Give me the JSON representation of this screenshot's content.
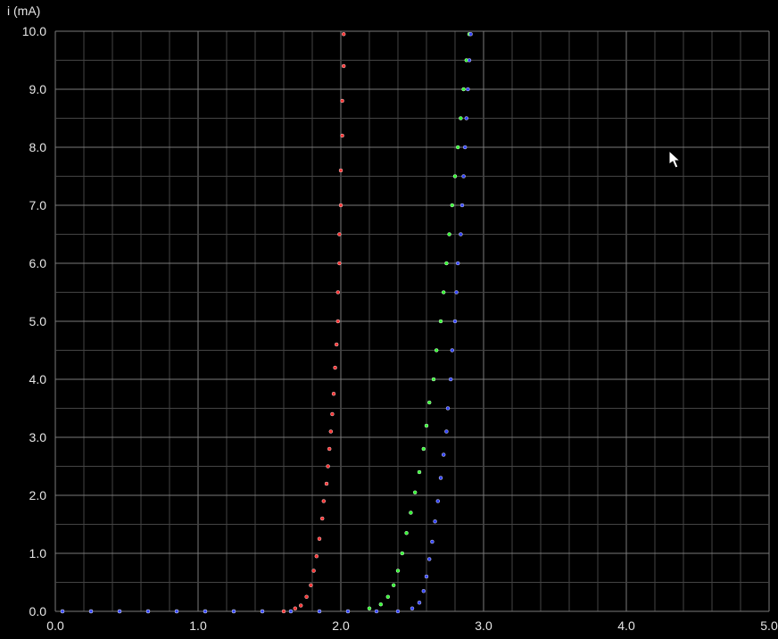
{
  "chart_data": {
    "type": "scatter",
    "title": "",
    "xlabel": "",
    "ylabel": "i (mA)",
    "xlim": [
      0,
      5
    ],
    "ylim": [
      0,
      10
    ],
    "x_ticks": [
      "0.0",
      "1.0",
      "2.0",
      "3.0",
      "4.0",
      "5.0"
    ],
    "y_ticks": [
      "0.0",
      "1.0",
      "2.0",
      "3.0",
      "4.0",
      "5.0",
      "6.0",
      "7.0",
      "8.0",
      "9.0",
      "10.0"
    ],
    "grid": true,
    "background": "#000000",
    "grid_color": "#4a4a4a",
    "series": [
      {
        "color": "#ff3333",
        "points": [
          [
            0.05,
            0
          ],
          [
            0.25,
            0
          ],
          [
            0.45,
            0
          ],
          [
            0.65,
            0
          ],
          [
            0.85,
            0
          ],
          [
            1.05,
            0
          ],
          [
            1.25,
            0
          ],
          [
            1.45,
            0
          ],
          [
            1.6,
            0
          ],
          [
            1.68,
            0.05
          ],
          [
            1.72,
            0.1
          ],
          [
            1.76,
            0.25
          ],
          [
            1.79,
            0.45
          ],
          [
            1.81,
            0.7
          ],
          [
            1.83,
            0.95
          ],
          [
            1.85,
            1.25
          ],
          [
            1.87,
            1.6
          ],
          [
            1.88,
            1.9
          ],
          [
            1.9,
            2.2
          ],
          [
            1.91,
            2.5
          ],
          [
            1.92,
            2.8
          ],
          [
            1.93,
            3.1
          ],
          [
            1.94,
            3.4
          ],
          [
            1.95,
            3.75
          ],
          [
            1.96,
            4.2
          ],
          [
            1.97,
            4.6
          ],
          [
            1.98,
            5.0
          ],
          [
            1.98,
            5.5
          ],
          [
            1.99,
            6.0
          ],
          [
            1.99,
            6.5
          ],
          [
            2.0,
            7.0
          ],
          [
            2.0,
            7.6
          ],
          [
            2.01,
            8.2
          ],
          [
            2.01,
            8.8
          ],
          [
            2.02,
            9.4
          ],
          [
            2.02,
            9.95
          ]
        ]
      },
      {
        "color": "#33ff33",
        "points": [
          [
            0.05,
            0
          ],
          [
            0.25,
            0
          ],
          [
            0.45,
            0
          ],
          [
            0.65,
            0
          ],
          [
            0.85,
            0
          ],
          [
            1.05,
            0
          ],
          [
            1.25,
            0
          ],
          [
            1.45,
            0
          ],
          [
            1.65,
            0
          ],
          [
            1.85,
            0
          ],
          [
            2.05,
            0
          ],
          [
            2.2,
            0.05
          ],
          [
            2.28,
            0.12
          ],
          [
            2.33,
            0.25
          ],
          [
            2.37,
            0.45
          ],
          [
            2.4,
            0.7
          ],
          [
            2.43,
            1.0
          ],
          [
            2.46,
            1.35
          ],
          [
            2.49,
            1.7
          ],
          [
            2.52,
            2.05
          ],
          [
            2.55,
            2.4
          ],
          [
            2.58,
            2.8
          ],
          [
            2.6,
            3.2
          ],
          [
            2.62,
            3.6
          ],
          [
            2.65,
            4.0
          ],
          [
            2.67,
            4.5
          ],
          [
            2.7,
            5.0
          ],
          [
            2.72,
            5.5
          ],
          [
            2.74,
            6.0
          ],
          [
            2.76,
            6.5
          ],
          [
            2.78,
            7.0
          ],
          [
            2.8,
            7.5
          ],
          [
            2.82,
            8.0
          ],
          [
            2.84,
            8.5
          ],
          [
            2.86,
            9.0
          ],
          [
            2.88,
            9.5
          ],
          [
            2.9,
            9.95
          ]
        ]
      },
      {
        "color": "#3344ff",
        "points": [
          [
            0.05,
            0
          ],
          [
            0.25,
            0
          ],
          [
            0.45,
            0
          ],
          [
            0.65,
            0
          ],
          [
            0.85,
            0
          ],
          [
            1.05,
            0
          ],
          [
            1.25,
            0
          ],
          [
            1.45,
            0
          ],
          [
            1.65,
            0
          ],
          [
            1.85,
            0
          ],
          [
            2.05,
            0
          ],
          [
            2.25,
            0
          ],
          [
            2.4,
            0
          ],
          [
            2.5,
            0.05
          ],
          [
            2.55,
            0.15
          ],
          [
            2.58,
            0.35
          ],
          [
            2.6,
            0.6
          ],
          [
            2.62,
            0.9
          ],
          [
            2.64,
            1.2
          ],
          [
            2.66,
            1.55
          ],
          [
            2.68,
            1.9
          ],
          [
            2.7,
            2.3
          ],
          [
            2.72,
            2.7
          ],
          [
            2.74,
            3.1
          ],
          [
            2.75,
            3.5
          ],
          [
            2.77,
            4.0
          ],
          [
            2.78,
            4.5
          ],
          [
            2.8,
            5.0
          ],
          [
            2.81,
            5.5
          ],
          [
            2.82,
            6.0
          ],
          [
            2.84,
            6.5
          ],
          [
            2.85,
            7.0
          ],
          [
            2.86,
            7.5
          ],
          [
            2.87,
            8.0
          ],
          [
            2.88,
            8.5
          ],
          [
            2.89,
            9.0
          ],
          [
            2.9,
            9.5
          ],
          [
            2.91,
            9.95
          ]
        ]
      }
    ]
  }
}
